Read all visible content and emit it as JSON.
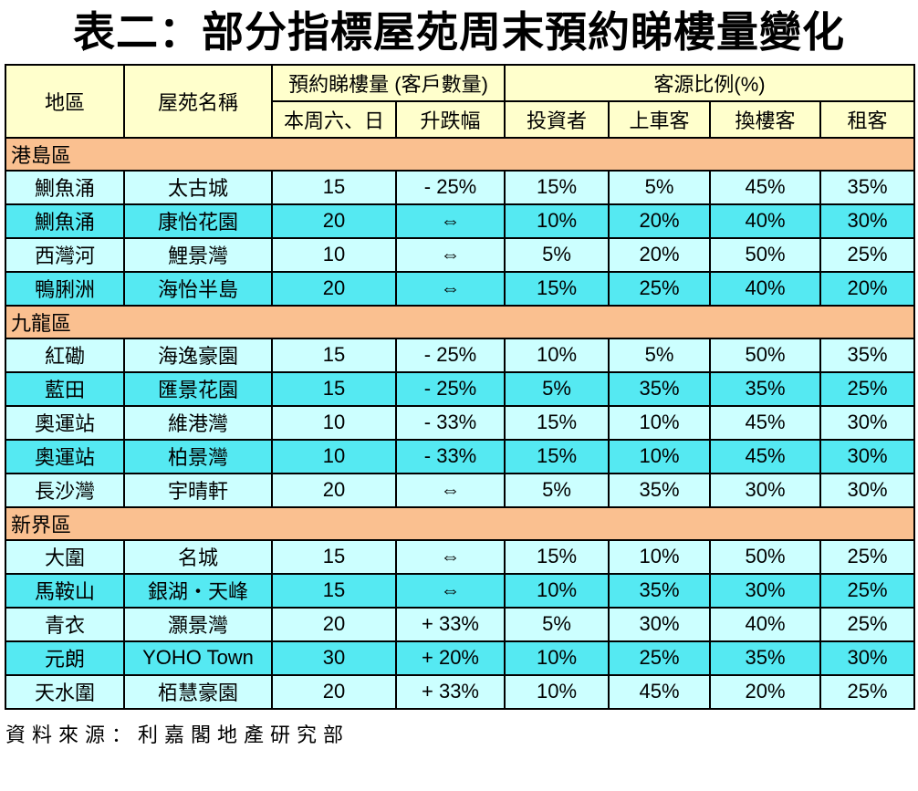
{
  "title": "表二：部分指標屋苑周末預約睇樓量變化",
  "footer": "資料來源：利嘉閣地產研究部",
  "colors": {
    "header_bg": "#FFFFCC",
    "section_bg": "#FAC090",
    "row_light_bg": "#CCFFFF",
    "row_bright_bg": "#55E9F2",
    "border": "#000000"
  },
  "table": {
    "header": {
      "district": "地區",
      "estate": "屋苑名稱",
      "bookings_group": "預約睇樓量 (客戶數量)",
      "bookings_sub": [
        "本周六、日",
        "升跌幅"
      ],
      "source_group": "客源比例(%)",
      "source_sub": [
        "投資者",
        "上車客",
        "換樓客",
        "租客"
      ]
    },
    "sections": [
      {
        "name": "港島區",
        "rows": [
          [
            "鰂魚涌",
            "太古城",
            "15",
            "- 25%",
            "15%",
            "5%",
            "45%",
            "35%"
          ],
          [
            "鰂魚涌",
            "康怡花園",
            "20",
            "⇔",
            "10%",
            "20%",
            "40%",
            "30%"
          ],
          [
            "西灣河",
            "鯉景灣",
            "10",
            "⇔",
            "5%",
            "20%",
            "50%",
            "25%"
          ],
          [
            "鴨脷洲",
            "海怡半島",
            "20",
            "⇔",
            "15%",
            "25%",
            "40%",
            "20%"
          ]
        ]
      },
      {
        "name": "九龍區",
        "rows": [
          [
            "紅磡",
            "海逸豪園",
            "15",
            "- 25%",
            "10%",
            "5%",
            "50%",
            "35%"
          ],
          [
            "藍田",
            "匯景花園",
            "15",
            "- 25%",
            "5%",
            "35%",
            "35%",
            "25%"
          ],
          [
            "奧運站",
            "維港灣",
            "10",
            "- 33%",
            "15%",
            "10%",
            "45%",
            "30%"
          ],
          [
            "奧運站",
            "柏景灣",
            "10",
            "- 33%",
            "15%",
            "10%",
            "45%",
            "30%"
          ],
          [
            "長沙灣",
            "宇晴軒",
            "20",
            "⇔",
            "5%",
            "35%",
            "30%",
            "30%"
          ]
        ]
      },
      {
        "name": "新界區",
        "rows": [
          [
            "大圍",
            "名城",
            "15",
            "⇔",
            "15%",
            "10%",
            "50%",
            "25%"
          ],
          [
            "馬鞍山",
            "銀湖・天峰",
            "15",
            "⇔",
            "10%",
            "35%",
            "30%",
            "25%"
          ],
          [
            "青衣",
            "灝景灣",
            "20",
            "+ 33%",
            "5%",
            "30%",
            "40%",
            "25%"
          ],
          [
            "元朗",
            "YOHO Town",
            "30",
            "+ 20%",
            "10%",
            "25%",
            "35%",
            "30%"
          ],
          [
            "天水圍",
            "栢慧豪園",
            "20",
            "+ 33%",
            "10%",
            "45%",
            "20%",
            "25%"
          ]
        ]
      }
    ]
  }
}
